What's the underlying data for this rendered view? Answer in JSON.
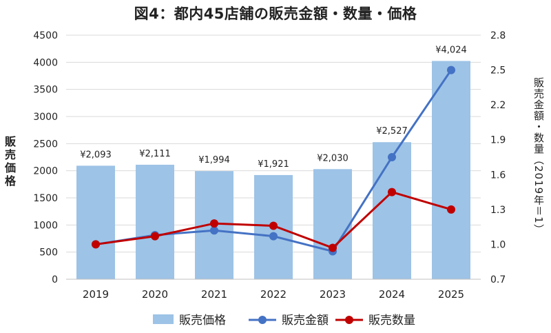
{
  "chart_data": {
    "type": "bar",
    "title": "図4：都内45店舗の販売金額・数量・価格",
    "ylabel_left": "販売価格",
    "ylabel_right": "販売金額・数量（2019年＝1）",
    "categories": [
      "2019",
      "2020",
      "2021",
      "2022",
      "2023",
      "2024",
      "2025"
    ],
    "ylim_left": [
      0,
      4500
    ],
    "yticks_left": [
      "0",
      "500",
      "1000",
      "1500",
      "2000",
      "2500",
      "3000",
      "3500",
      "4000",
      "4500"
    ],
    "ylim_right": [
      0.7,
      2.8
    ],
    "yticks_right": [
      "0.7",
      "1.0",
      "1.3",
      "1.6",
      "1.9",
      "2.2",
      "2.5",
      "2.8"
    ],
    "grid": true,
    "legend_position": "bottom",
    "series": [
      {
        "name": "販売価格",
        "kind": "bar",
        "axis": "left",
        "color": "#9dc3e6",
        "values": [
          2093,
          2111,
          1994,
          1921,
          2030,
          2527,
          4024
        ],
        "labels": [
          "¥2,093",
          "¥2,111",
          "¥1,994",
          "¥1,921",
          "¥2,030",
          "¥2,527",
          "¥4,024"
        ]
      },
      {
        "name": "販売金額",
        "kind": "line",
        "axis": "right",
        "color": "#4472c4",
        "values": [
          1.0,
          1.08,
          1.12,
          1.07,
          0.94,
          1.75,
          2.5
        ]
      },
      {
        "name": "販売数量",
        "kind": "line",
        "axis": "right",
        "color": "#c00000",
        "values": [
          1.0,
          1.07,
          1.18,
          1.16,
          0.97,
          1.45,
          1.3
        ]
      }
    ]
  }
}
